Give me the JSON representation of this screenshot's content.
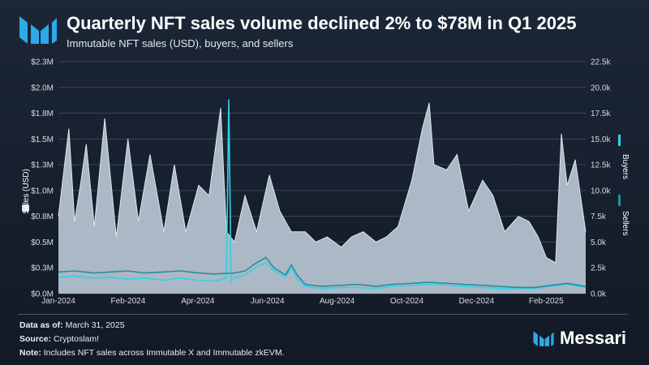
{
  "header": {
    "title": "Quarterly NFT sales volume declined 2% to $78M in Q1 2025",
    "subtitle": "Immutable NFT sales (USD), buyers, and sellers"
  },
  "footer": {
    "data_as_of_label": "Data as of:",
    "data_as_of_value": "March 31, 2025",
    "source_label": "Source:",
    "source_value": "Cryptoslam!",
    "note_label": "Note:",
    "note_value": "Includes NFT sales across Immutable X and Immutable zkEVM."
  },
  "brand": {
    "name": "Messari"
  },
  "colors": {
    "sales_fill": "#b9c6d3",
    "sales_line": "#dfe6ee",
    "buyers": "#33d1e6",
    "sellers": "#2b8c99",
    "grid": "#3a4556"
  },
  "chart_data": {
    "type": "area",
    "title": "Quarterly NFT sales volume declined 2% to $78M in Q1 2025",
    "subtitle": "Immutable NFT sales (USD), buyers, and sellers",
    "x_range": [
      "2024-01-01",
      "2025-03-31"
    ],
    "x_ticks": [
      "Jan-2024",
      "Feb-2024",
      "Apr-2024",
      "Jun-2024",
      "Aug-2024",
      "Oct-2024",
      "Dec-2024",
      "Feb-2025"
    ],
    "y_left": {
      "label": "Sales (USD)",
      "ticks": [
        "$0.0M",
        "$0.3M",
        "$0.5M",
        "$0.8M",
        "$1.0M",
        "$1.3M",
        "$1.5M",
        "$1.8M",
        "$2.0M",
        "$2.3M"
      ],
      "range": [
        0,
        2.25
      ]
    },
    "y_right": {
      "ticks": [
        "0.0k",
        "2.5k",
        "5.0k",
        "7.5k",
        "10.0k",
        "12.5k",
        "15.0k",
        "17.5k",
        "20.0k",
        "22.5k"
      ],
      "range": [
        0,
        22.5
      ]
    },
    "grid": true,
    "series": [
      {
        "name": "Sales (USD)",
        "axis": "left",
        "style": "area",
        "x": [
          "2024-01-01",
          "2024-01-10",
          "2024-01-15",
          "2024-01-20",
          "2024-01-25",
          "2024-02-01",
          "2024-02-10",
          "2024-02-20",
          "2024-03-01",
          "2024-03-10",
          "2024-03-20",
          "2024-04-01",
          "2024-04-10",
          "2024-04-20",
          "2024-05-01",
          "2024-05-10",
          "2024-05-20",
          "2024-05-25",
          "2024-06-01",
          "2024-06-10",
          "2024-06-20",
          "2024-07-01",
          "2024-07-10",
          "2024-07-20",
          "2024-08-01",
          "2024-08-10",
          "2024-08-20",
          "2024-09-01",
          "2024-09-10",
          "2024-09-20",
          "2024-10-01",
          "2024-10-10",
          "2024-10-20",
          "2024-11-01",
          "2024-11-10",
          "2024-11-16",
          "2024-11-20",
          "2024-12-01",
          "2024-12-10",
          "2024-12-20",
          "2025-01-01",
          "2025-01-10",
          "2025-01-20",
          "2025-02-01",
          "2025-02-10",
          "2025-02-18",
          "2025-02-25",
          "2025-03-05",
          "2025-03-10",
          "2025-03-15",
          "2025-03-22",
          "2025-03-31"
        ],
        "values": [
          0.75,
          1.6,
          0.7,
          1.05,
          1.45,
          0.65,
          1.7,
          0.55,
          1.5,
          0.7,
          1.35,
          0.6,
          1.25,
          0.6,
          1.05,
          0.95,
          1.8,
          0.6,
          0.5,
          0.95,
          0.6,
          1.15,
          0.8,
          0.6,
          0.6,
          0.5,
          0.55,
          0.45,
          0.55,
          0.6,
          0.5,
          0.55,
          0.65,
          1.1,
          1.6,
          1.85,
          1.25,
          1.2,
          1.35,
          0.8,
          1.1,
          0.95,
          0.6,
          0.75,
          0.7,
          0.55,
          0.35,
          0.3,
          1.55,
          1.05,
          1.3,
          0.6
        ]
      },
      {
        "name": "Buyers",
        "axis": "right",
        "style": "line",
        "x": [
          "2024-01-01",
          "2024-01-15",
          "2024-02-01",
          "2024-02-15",
          "2024-03-01",
          "2024-03-15",
          "2024-04-01",
          "2024-04-15",
          "2024-05-01",
          "2024-05-15",
          "2024-05-25",
          "2024-05-27",
          "2024-05-29",
          "2024-06-01",
          "2024-06-10",
          "2024-06-20",
          "2024-06-28",
          "2024-07-05",
          "2024-07-15",
          "2024-07-20",
          "2024-07-25",
          "2024-08-01",
          "2024-08-15",
          "2024-09-01",
          "2024-09-15",
          "2024-10-01",
          "2024-10-15",
          "2024-11-01",
          "2024-11-15",
          "2024-12-01",
          "2024-12-15",
          "2025-01-01",
          "2025-01-15",
          "2025-02-01",
          "2025-02-15",
          "2025-03-01",
          "2025-03-15",
          "2025-03-31"
        ],
        "values": [
          1.6,
          1.7,
          1.5,
          1.6,
          1.4,
          1.5,
          1.3,
          1.5,
          1.3,
          1.2,
          1.5,
          18.8,
          1.2,
          1.5,
          1.8,
          2.6,
          3.0,
          2.2,
          1.6,
          2.5,
          1.4,
          0.7,
          0.5,
          0.6,
          0.6,
          0.5,
          0.7,
          0.8,
          0.9,
          0.8,
          0.7,
          0.6,
          0.5,
          0.5,
          0.5,
          0.7,
          0.9,
          0.6
        ]
      },
      {
        "name": "Sellers",
        "axis": "right",
        "style": "line",
        "x": [
          "2024-01-01",
          "2024-01-15",
          "2024-02-01",
          "2024-02-15",
          "2024-03-01",
          "2024-03-15",
          "2024-04-01",
          "2024-04-15",
          "2024-05-01",
          "2024-05-15",
          "2024-06-01",
          "2024-06-10",
          "2024-06-20",
          "2024-06-28",
          "2024-07-05",
          "2024-07-15",
          "2024-07-20",
          "2024-07-25",
          "2024-08-01",
          "2024-08-15",
          "2024-09-01",
          "2024-09-15",
          "2024-10-01",
          "2024-10-15",
          "2024-11-01",
          "2024-11-15",
          "2024-12-01",
          "2024-12-15",
          "2025-01-01",
          "2025-01-15",
          "2025-02-01",
          "2025-02-15",
          "2025-03-01",
          "2025-03-15",
          "2025-03-31"
        ],
        "values": [
          2.1,
          2.2,
          2.0,
          2.1,
          2.2,
          2.0,
          2.1,
          2.2,
          2.0,
          1.9,
          2.0,
          2.2,
          3.0,
          3.5,
          2.5,
          1.8,
          2.8,
          1.8,
          0.9,
          0.7,
          0.8,
          0.9,
          0.7,
          0.9,
          1.0,
          1.1,
          1.0,
          0.9,
          0.8,
          0.7,
          0.6,
          0.6,
          0.8,
          1.0,
          0.7
        ]
      }
    ]
  }
}
